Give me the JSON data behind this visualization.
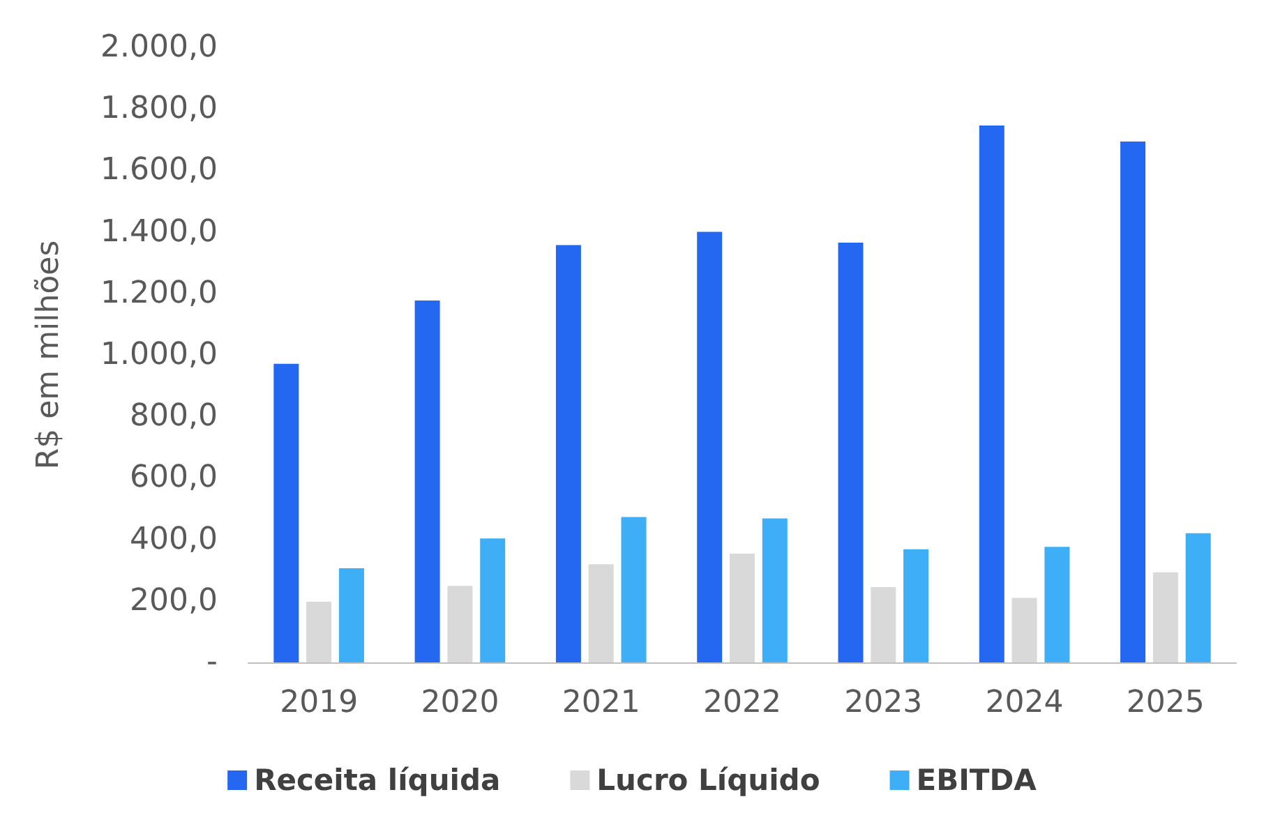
{
  "chart_data": {
    "type": "bar",
    "ylabel": "R$ em milhões",
    "categories": [
      "2019",
      "2020",
      "2021",
      "2022",
      "2023",
      "2024",
      "2025"
    ],
    "series": [
      {
        "name": "Receita líquida",
        "color": "#2468f2",
        "values": [
          971,
          1177,
          1357,
          1400,
          1365,
          1746,
          1694
        ]
      },
      {
        "name": "Lucro Líquido",
        "color": "#d9d9d9",
        "values": [
          197,
          249,
          319,
          354,
          245,
          210,
          293
        ]
      },
      {
        "name": "EBITDA",
        "color": "#3eaff6",
        "values": [
          306,
          403,
          473,
          468,
          368,
          376,
          420
        ]
      }
    ],
    "ylim": [
      0,
      2000
    ],
    "yticks": [
      {
        "value": 0,
        "label": "-"
      },
      {
        "value": 200,
        "label": "200,0"
      },
      {
        "value": 400,
        "label": "400,0"
      },
      {
        "value": 600,
        "label": "600,0"
      },
      {
        "value": 800,
        "label": "800,0"
      },
      {
        "value": 1000,
        "label": "1.000,0"
      },
      {
        "value": 1200,
        "label": "1.200,0"
      },
      {
        "value": 1400,
        "label": "1.400,0"
      },
      {
        "value": 1600,
        "label": "1.600,0"
      },
      {
        "value": 1800,
        "label": "1.800,0"
      },
      {
        "value": 2000,
        "label": "2.000,0"
      }
    ],
    "grid": false,
    "legend": "bottom"
  }
}
